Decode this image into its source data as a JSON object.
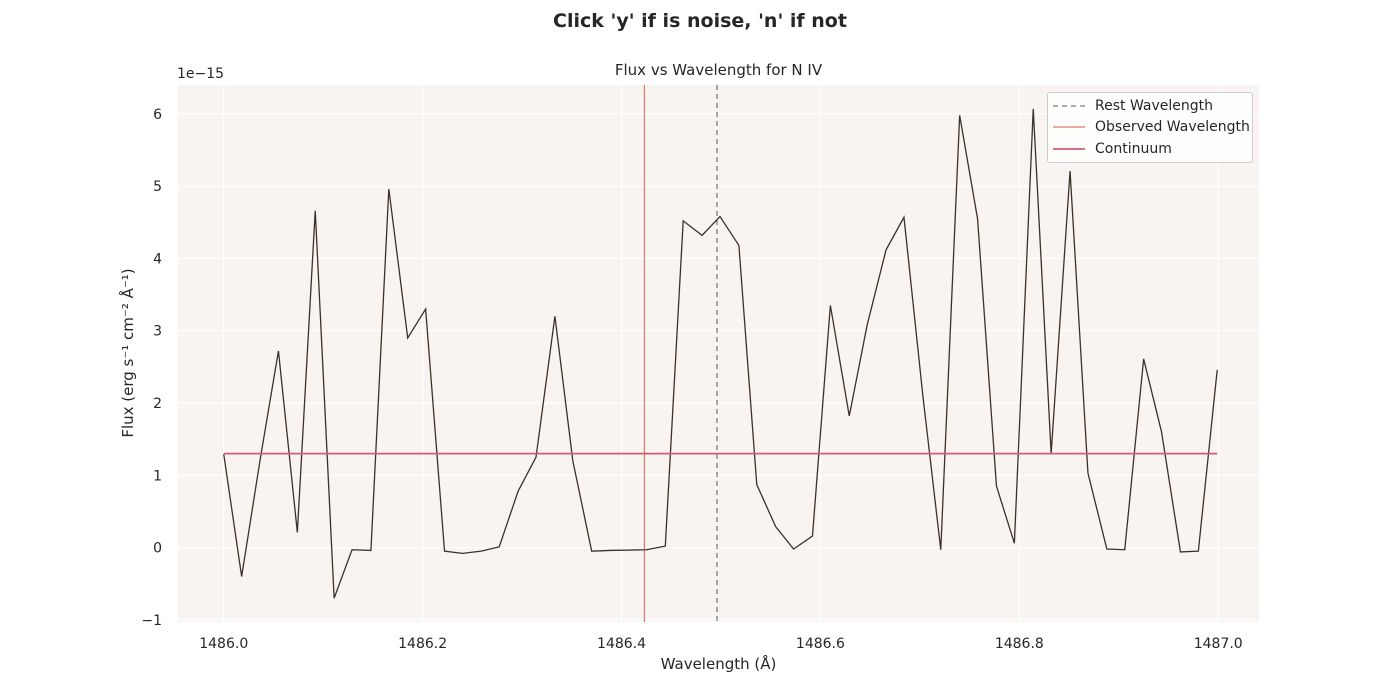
{
  "suptitle": "Click 'y' if is noise, 'n' if not",
  "chart_data": {
    "type": "line",
    "title": "Flux vs Wavelength for N IV",
    "xlabel": "Wavelength (Å)",
    "ylabel": "Flux (erg s⁻¹ cm⁻² Å⁻¹)",
    "y_offset_label": "1e−15",
    "y_scale_factor": 1e-15,
    "xlim": [
      1485.954,
      1487.041
    ],
    "ylim": [
      -1.03,
      6.4
    ],
    "xticks": [
      1486.0,
      1486.2,
      1486.4,
      1486.6,
      1486.8,
      1487.0
    ],
    "xtick_labels": [
      "1486.0",
      "1486.2",
      "1486.4",
      "1486.6",
      "1486.8",
      "1487.0"
    ],
    "yticks": [
      -1,
      0,
      1,
      2,
      3,
      4,
      5,
      6
    ],
    "ytick_labels": [
      "−1",
      "0",
      "1",
      "2",
      "3",
      "4",
      "5",
      "6"
    ],
    "grid": true,
    "legend_position": "top-right",
    "colors": {
      "background": "#f7f4f1",
      "grid": "#ffffff",
      "flux": "#3d3128",
      "rest": "#7a7a7a",
      "observed": "#e07a6a",
      "continuum": "#d45a78"
    },
    "series": [
      {
        "name": "Flux",
        "x": [
          1486.0,
          1486.018,
          1486.037,
          1486.055,
          1486.074,
          1486.092,
          1486.111,
          1486.129,
          1486.148,
          1486.166,
          1486.185,
          1486.203,
          1486.222,
          1486.24,
          1486.259,
          1486.277,
          1486.296,
          1486.314,
          1486.333,
          1486.351,
          1486.37,
          1486.388,
          1486.407,
          1486.425,
          1486.444,
          1486.462,
          1486.481,
          1486.499,
          1486.518,
          1486.536,
          1486.555,
          1486.573,
          1486.592,
          1486.61,
          1486.629,
          1486.647,
          1486.666,
          1486.684,
          1486.703,
          1486.721,
          1486.74,
          1486.758,
          1486.777,
          1486.795,
          1486.814,
          1486.832,
          1486.851,
          1486.869,
          1486.888,
          1486.906,
          1486.925,
          1486.943,
          1486.962,
          1486.98,
          1486.999
        ],
        "y": [
          1.29,
          -0.4,
          1.25,
          2.72,
          0.21,
          4.66,
          -0.7,
          -0.03,
          -0.04,
          4.96,
          2.9,
          3.3,
          -0.05,
          -0.08,
          -0.05,
          0.01,
          0.78,
          1.25,
          3.2,
          1.2,
          -0.05,
          -0.04,
          -0.035,
          -0.03,
          0.02,
          4.52,
          4.32,
          4.58,
          4.18,
          0.87,
          0.29,
          -0.02,
          0.16,
          3.35,
          1.82,
          3.08,
          4.12,
          4.57,
          2.1,
          -0.03,
          5.98,
          4.55,
          0.85,
          0.06,
          6.07,
          1.3,
          5.21,
          1.03,
          -0.02,
          -0.03,
          2.61,
          1.6,
          -0.06,
          -0.05,
          2.46
        ]
      }
    ],
    "rest_wavelength": 1486.496,
    "observed_wavelength": 1486.423,
    "continuum": {
      "value": 1.3,
      "x_start": 1486.0,
      "x_end": 1486.999
    },
    "legend": [
      "Rest Wavelength",
      "Observed Wavelength",
      "Continuum"
    ]
  }
}
